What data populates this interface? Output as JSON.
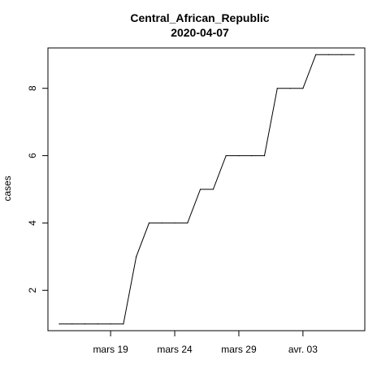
{
  "chart_data": {
    "type": "line",
    "title": "Central_African_Republic",
    "subtitle": "2020-04-07",
    "xlabel": "",
    "ylabel": "cases",
    "x_ticks": [
      "mars 19",
      "mars 24",
      "mars 29",
      "avr. 03"
    ],
    "y_ticks": [
      "2",
      "4",
      "6",
      "8"
    ],
    "ylim": [
      0.8,
      9.2
    ],
    "xlim": [
      "2020-03-15",
      "2020-04-07"
    ],
    "grid": false,
    "legend": "none",
    "line_color": "#000000",
    "series": [
      {
        "x": [
          "2020-03-15",
          "2020-03-16",
          "2020-03-17",
          "2020-03-18",
          "2020-03-19",
          "2020-03-20",
          "2020-03-21",
          "2020-03-22",
          "2020-03-23",
          "2020-03-24",
          "2020-03-25",
          "2020-03-26",
          "2020-03-27",
          "2020-03-28",
          "2020-03-29",
          "2020-03-30",
          "2020-03-31",
          "2020-04-01",
          "2020-04-02",
          "2020-04-03",
          "2020-04-04",
          "2020-04-05",
          "2020-04-06",
          "2020-04-07"
        ],
        "values": [
          1,
          1,
          1,
          1,
          1,
          1,
          3,
          4,
          4,
          4,
          4,
          5,
          5,
          6,
          6,
          6,
          6,
          8,
          8,
          8,
          9,
          9,
          9,
          9
        ]
      }
    ]
  }
}
